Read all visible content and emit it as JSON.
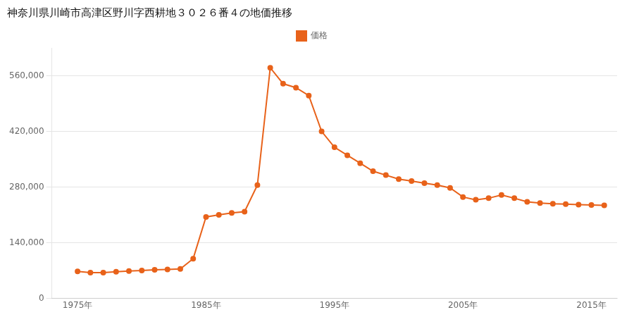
{
  "chart_data": {
    "type": "line",
    "title": "神奈川県川崎市高津区野川字西耕地３０２６番４の地価推移",
    "x": [
      1975,
      1976,
      1977,
      1978,
      1979,
      1980,
      1981,
      1982,
      1983,
      1984,
      1985,
      1986,
      1987,
      1988,
      1989,
      1990,
      1991,
      1992,
      1993,
      1994,
      1995,
      1996,
      1997,
      1998,
      1999,
      2000,
      2001,
      2002,
      2003,
      2004,
      2005,
      2006,
      2007,
      2008,
      2009,
      2010,
      2011,
      2012,
      2013,
      2014,
      2015,
      2016
    ],
    "series": [
      {
        "name": "価格",
        "color": "#e8621a",
        "marker": "circle",
        "values": [
          68000,
          65000,
          65000,
          67000,
          69000,
          70000,
          72000,
          73000,
          74000,
          100000,
          205000,
          210000,
          215000,
          218000,
          285000,
          580000,
          540000,
          530000,
          510000,
          420000,
          380000,
          360000,
          340000,
          320000,
          310000,
          300000,
          295000,
          290000,
          285000,
          278000,
          255000,
          248000,
          252000,
          260000,
          252000,
          243000,
          240000,
          238000,
          237000,
          236000,
          235000,
          234000
        ]
      }
    ],
    "xlim": [
      1973,
      2017
    ],
    "xticks": [
      {
        "value": 1975,
        "label": "1975年"
      },
      {
        "value": 1985,
        "label": "1985年"
      },
      {
        "value": 1995,
        "label": "1995年"
      },
      {
        "value": 2005,
        "label": "2005年"
      },
      {
        "value": 2015,
        "label": "2015年"
      }
    ],
    "ylim": [
      0,
      630000
    ],
    "yticks": [
      0,
      {
        "value": 140000,
        "label": "140,000"
      },
      {
        "value": 280000,
        "label": "280,000"
      },
      {
        "value": 420000,
        "label": "420,000"
      },
      {
        "value": 560000,
        "label": "560,000"
      }
    ],
    "grid": "y",
    "legend": "top"
  }
}
